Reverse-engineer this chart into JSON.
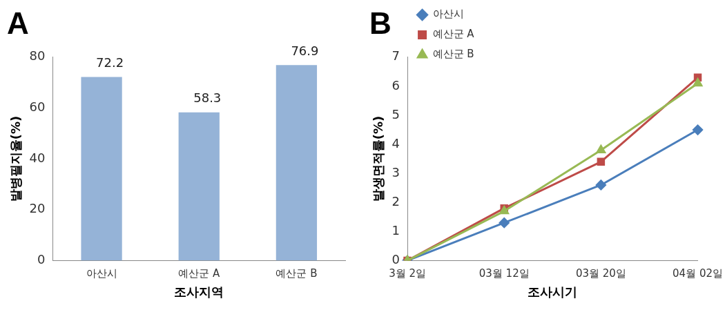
{
  "chart_data": [
    {
      "type": "bar",
      "title": "A",
      "xlabel": "조사지역",
      "ylabel": "발병필지율(%)",
      "categories": [
        "아산시",
        "예산군 A",
        "예산군 B"
      ],
      "values": [
        72.2,
        58.3,
        76.9
      ],
      "color": "#95b3d7",
      "ylim": [
        0,
        80
      ],
      "yticks": [
        0,
        20,
        40,
        60,
        80
      ],
      "data_labels": true,
      "grid": false,
      "legend": false
    },
    {
      "type": "line",
      "title": "B",
      "xlabel": "조사시기",
      "ylabel": "발생면적률(%)",
      "categories": [
        "3월 2일",
        "03월 12일",
        "03월 20일",
        "04월 02일"
      ],
      "series": [
        {
          "name": "아산시",
          "color": "#4a7ebb",
          "marker": "diamond",
          "values": [
            0,
            1.3,
            2.6,
            4.5
          ]
        },
        {
          "name": "예산군 A",
          "color": "#be4b48",
          "marker": "square",
          "values": [
            0,
            1.8,
            3.4,
            6.3
          ]
        },
        {
          "name": "예산군 B",
          "color": "#98b954",
          "marker": "triangle",
          "values": [
            0,
            1.7,
            3.8,
            6.1
          ]
        }
      ],
      "ylim": [
        0,
        7
      ],
      "yticks": [
        0,
        1,
        2,
        3,
        4,
        5,
        6,
        7
      ],
      "grid": false,
      "legend": "top left"
    }
  ]
}
